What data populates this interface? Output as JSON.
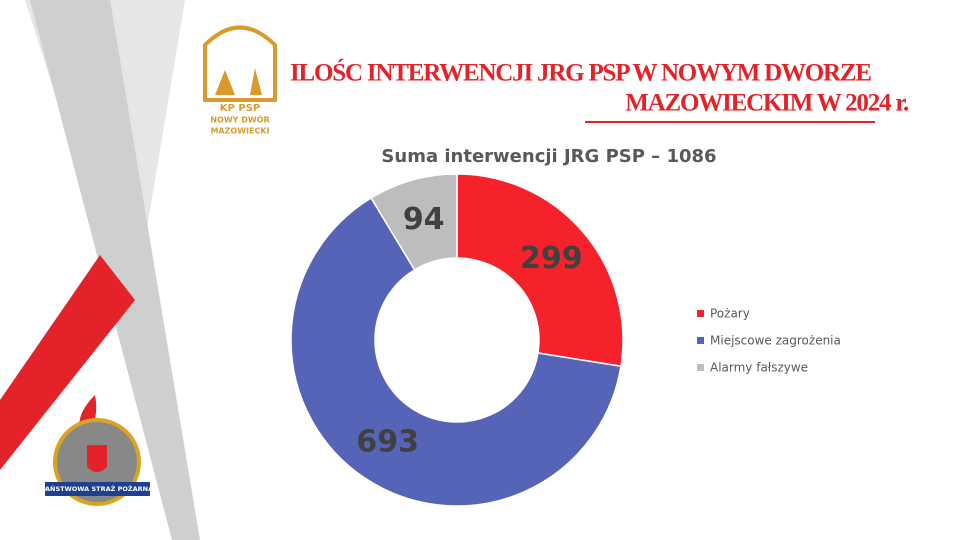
{
  "slide": {
    "title_lines": [
      "ILOŚC INTERWENCJI JRG PSP W NOWYM DWORZE",
      "MAZOWIECKIM W 2024 r."
    ],
    "logo_top": {
      "line1": "KP PSP",
      "line2": "NOWY DWÓR",
      "line3": "MAZOWIECKI"
    },
    "logo_bottom": "PAŃSTWOWA STRAŻ POŻARNA"
  },
  "chart_data": {
    "type": "donut",
    "title": "Suma interwencji JRG PSP – 1086",
    "categories": [
      "Pożary",
      "Miejscowe zagrożenia",
      "Alarmy fałszywe"
    ],
    "values": [
      299,
      693,
      94
    ],
    "colors": [
      "#f5212b",
      "#5664b8",
      "#bdbdbd"
    ]
  }
}
